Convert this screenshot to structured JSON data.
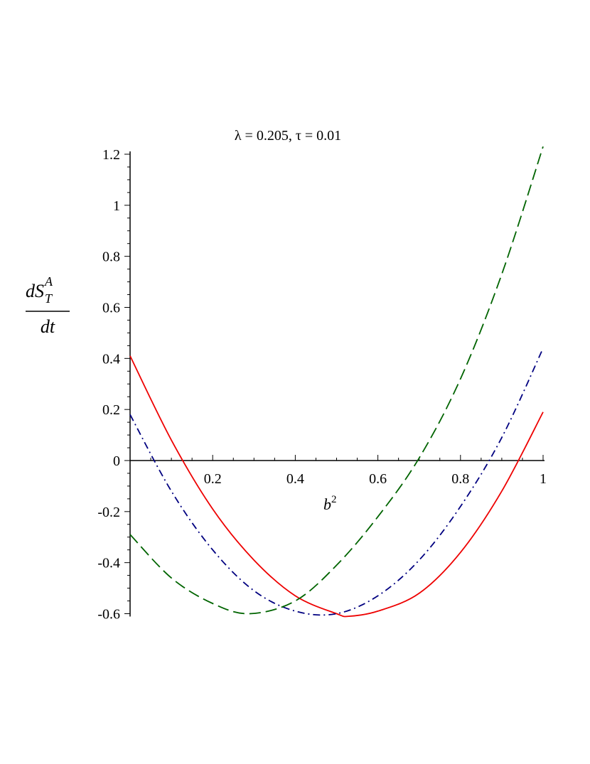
{
  "chart_data": {
    "type": "line",
    "title": "λ = 0.205, τ = 0.01",
    "xlabel": {
      "base": "b",
      "sup": "2"
    },
    "ylabel": {
      "numerator": "dS",
      "sup": "A",
      "sub": "T",
      "denominator": "dt"
    },
    "xlim": [
      0,
      1
    ],
    "ylim": [
      -0.6,
      1.2
    ],
    "x_ticks": [
      {
        "value": 0.2,
        "label": "0.2"
      },
      {
        "value": 0.4,
        "label": "0.4"
      },
      {
        "value": 0.6,
        "label": "0.6"
      },
      {
        "value": 0.8,
        "label": "0.8"
      },
      {
        "value": 1.0,
        "label": "1"
      }
    ],
    "y_ticks": [
      {
        "value": 1.2,
        "label": "1.2"
      },
      {
        "value": 1.0,
        "label": "1"
      },
      {
        "value": 0.8,
        "label": "0.8"
      },
      {
        "value": 0.6,
        "label": "0.6"
      },
      {
        "value": 0.4,
        "label": "0.4"
      },
      {
        "value": 0.2,
        "label": "0.2"
      },
      {
        "value": 0.0,
        "label": "0"
      },
      {
        "value": -0.2,
        "label": "-0.2"
      },
      {
        "value": -0.4,
        "label": "-0.4"
      },
      {
        "value": -0.6,
        "label": "-0.6"
      }
    ],
    "grid": false,
    "series": [
      {
        "color": "#ee0000",
        "style": "solid",
        "x": [
          0,
          0.1,
          0.2,
          0.3,
          0.4,
          0.5,
          0.53,
          0.6,
          0.7,
          0.8,
          0.9,
          1.0
        ],
        "y": [
          0.41,
          0.08,
          -0.19,
          -0.39,
          -0.53,
          -0.6,
          -0.61,
          -0.59,
          -0.52,
          -0.36,
          -0.12,
          0.19
        ]
      },
      {
        "color": "#000080",
        "style": "dashdot",
        "x": [
          0,
          0.1,
          0.2,
          0.3,
          0.4,
          0.5,
          0.6,
          0.7,
          0.8,
          0.9,
          1.0
        ],
        "y": [
          0.18,
          -0.12,
          -0.35,
          -0.51,
          -0.59,
          -0.6,
          -0.53,
          -0.39,
          -0.18,
          0.09,
          0.44
        ]
      },
      {
        "color": "#006400",
        "style": "dashed",
        "x": [
          0,
          0.1,
          0.2,
          0.29,
          0.4,
          0.5,
          0.6,
          0.7,
          0.8,
          0.9,
          1.0
        ],
        "y": [
          -0.29,
          -0.46,
          -0.56,
          -0.6,
          -0.55,
          -0.41,
          -0.22,
          0.01,
          0.32,
          0.73,
          1.23
        ]
      }
    ]
  }
}
